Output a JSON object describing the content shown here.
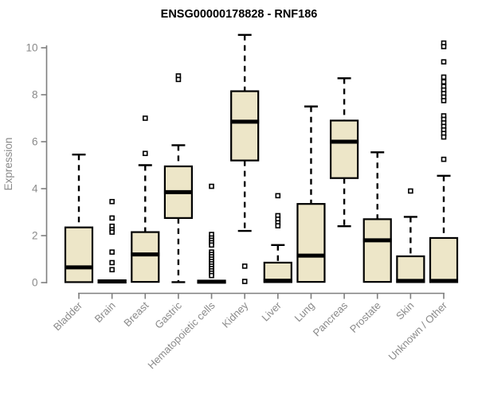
{
  "page": {
    "background": "#ffffff"
  },
  "chart_data": {
    "type": "boxplot",
    "title": "ENSG00000178828 - RNF186",
    "xlabel": "",
    "ylabel": "Expression",
    "ylim": [
      0,
      10.6
    ],
    "yticks": [
      0,
      2,
      4,
      6,
      8,
      10
    ],
    "grid": false,
    "legend": "none",
    "colors": {
      "box_fill": "#EDE6C8",
      "box_stroke": "#000000",
      "median": "#000000",
      "whisker": "#000000",
      "axis": "#7f7f7f",
      "tick_label": "#8a8a8a",
      "title": "#000000"
    },
    "categories": [
      "Bladder",
      "Brain",
      "Breast",
      "Gastric",
      "Hematopoietic cells",
      "Kidney",
      "Liver",
      "Lung",
      "Pancreas",
      "Prostate",
      "Skin",
      "Unknown / Other"
    ],
    "series": [
      {
        "label": "Bladder",
        "low": 0.02,
        "q1": 0.02,
        "median": 0.65,
        "q3": 2.35,
        "high": 5.45,
        "outliers": []
      },
      {
        "label": "Brain",
        "low": 0.0,
        "q1": 0.0,
        "median": 0.05,
        "q3": 0.1,
        "high": 0.1,
        "outliers": [
          3.45,
          2.75,
          2.4,
          2.25,
          2.15,
          1.3,
          0.85,
          0.55
        ]
      },
      {
        "label": "Breast",
        "low": 0.03,
        "q1": 0.03,
        "median": 1.2,
        "q3": 2.15,
        "high": 5.0,
        "outliers": [
          7.0,
          5.5
        ]
      },
      {
        "label": "Gastric",
        "low": 0.02,
        "q1": 2.75,
        "median": 3.85,
        "q3": 4.95,
        "high": 5.85,
        "outliers": [
          8.8,
          8.65
        ]
      },
      {
        "label": "Hematopoietic cells",
        "low": 0.0,
        "q1": 0.0,
        "median": 0.04,
        "q3": 0.08,
        "high": 0.08,
        "outliers": [
          4.1,
          2.05,
          1.9,
          1.8,
          1.7,
          1.6,
          1.3,
          1.2,
          1.1,
          1.0,
          0.9,
          0.8,
          0.7,
          0.6,
          0.5,
          0.4,
          0.3
        ]
      },
      {
        "label": "Kidney",
        "low": 2.2,
        "q1": 5.2,
        "median": 6.85,
        "q3": 8.15,
        "high": 10.55,
        "outliers": [
          0.7,
          0.05
        ]
      },
      {
        "label": "Liver",
        "low": 0.02,
        "q1": 0.02,
        "median": 0.08,
        "q3": 0.85,
        "high": 1.6,
        "outliers": [
          3.7,
          2.85,
          2.7,
          2.55,
          2.42
        ]
      },
      {
        "label": "Lung",
        "low": 0.03,
        "q1": 0.03,
        "median": 1.15,
        "q3": 3.35,
        "high": 7.5,
        "outliers": []
      },
      {
        "label": "Pancreas",
        "low": 2.4,
        "q1": 4.45,
        "median": 6.0,
        "q3": 6.9,
        "high": 8.7,
        "outliers": []
      },
      {
        "label": "Prostate",
        "low": 0.03,
        "q1": 0.03,
        "median": 1.8,
        "q3": 2.7,
        "high": 5.55,
        "outliers": []
      },
      {
        "label": "Skin",
        "low": 0.02,
        "q1": 0.02,
        "median": 0.07,
        "q3": 1.12,
        "high": 2.8,
        "outliers": [
          3.9
        ]
      },
      {
        "label": "Unknown / Other",
        "low": 0.02,
        "q1": 0.02,
        "median": 0.07,
        "q3": 1.9,
        "high": 4.55,
        "outliers": [
          10.2,
          10.05,
          9.4,
          8.75,
          8.55,
          8.35,
          8.2,
          8.05,
          7.9,
          7.75,
          7.1,
          6.95,
          6.8,
          6.65,
          6.5,
          6.35,
          6.2,
          5.25
        ]
      }
    ]
  }
}
